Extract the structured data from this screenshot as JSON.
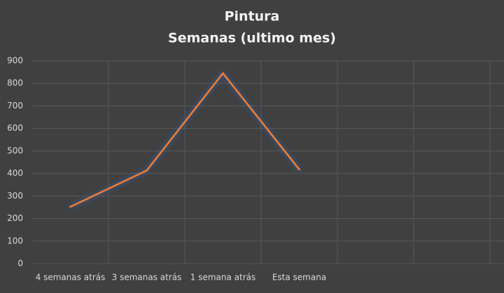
{
  "chart_data": {
    "type": "line",
    "title": "Pintura",
    "subtitle": "Semanas (ultimo mes)",
    "categories": [
      "4 semanas atrás",
      "3 semanas atrás",
      "1 semana atrás",
      "Esta semana",
      null,
      null
    ],
    "series": [
      {
        "name": "Pintura",
        "color": "#ed7d31",
        "values": [
          252,
          413,
          845,
          418,
          null,
          null
        ]
      }
    ],
    "ylim": [
      0,
      900
    ],
    "yticks": [
      0,
      100,
      200,
      300,
      400,
      500,
      600,
      700,
      800,
      900
    ],
    "grid": true
  }
}
